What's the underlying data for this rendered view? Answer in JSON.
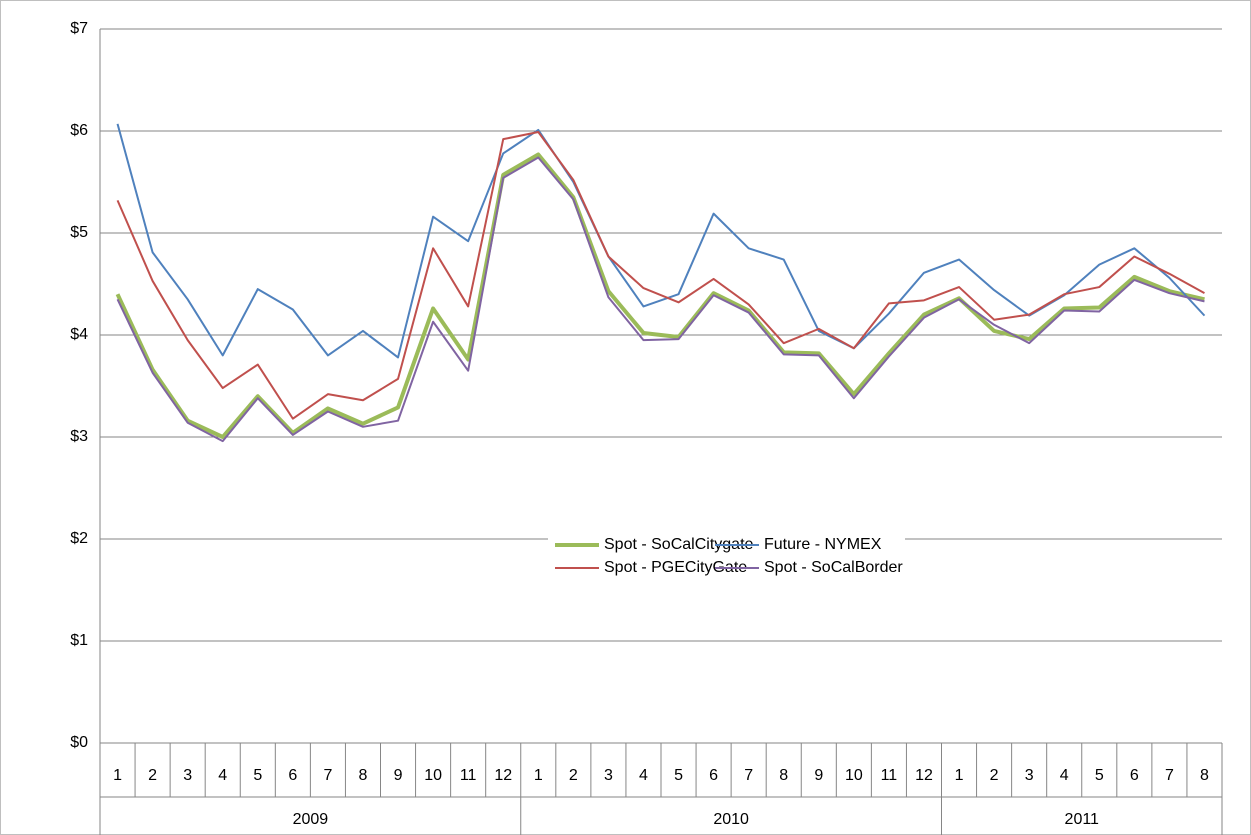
{
  "chart_data": {
    "type": "line",
    "category_groups": [
      {
        "name": "2009",
        "categories": [
          "1",
          "2",
          "3",
          "4",
          "5",
          "6",
          "7",
          "8",
          "9",
          "10",
          "11",
          "12"
        ]
      },
      {
        "name": "2010",
        "categories": [
          "1",
          "2",
          "3",
          "4",
          "5",
          "6",
          "7",
          "8",
          "9",
          "10",
          "11",
          "12"
        ]
      },
      {
        "name": "2011",
        "categories": [
          "1",
          "2",
          "3",
          "4",
          "5",
          "6",
          "7",
          "8"
        ]
      }
    ],
    "series": [
      {
        "name": "Spot - SoCalCitygate",
        "color": "#9bbb59",
        "width": 4,
        "values": [
          4.4,
          3.66,
          3.16,
          3.0,
          3.4,
          3.04,
          3.28,
          3.13,
          3.29,
          4.26,
          3.76,
          5.57,
          5.77,
          5.35,
          4.43,
          4.02,
          3.98,
          4.41,
          4.24,
          3.83,
          3.82,
          3.42,
          3.82,
          4.2,
          4.36,
          4.04,
          3.96,
          4.26,
          4.27,
          4.57,
          4.43,
          4.35
        ]
      },
      {
        "name": "Future - NYMEX",
        "color": "#4f81bd",
        "width": 2,
        "values": [
          6.07,
          4.81,
          4.35,
          3.8,
          4.45,
          4.25,
          3.8,
          4.04,
          3.78,
          5.16,
          4.92,
          5.78,
          6.01,
          5.5,
          4.77,
          4.28,
          4.4,
          5.19,
          4.85,
          4.74,
          4.04,
          3.87,
          4.21,
          4.61,
          4.74,
          4.44,
          4.19,
          4.39,
          4.69,
          4.85,
          4.56,
          4.19
        ]
      },
      {
        "name": "Spot - PGECityGate",
        "color": "#c0504d",
        "width": 2,
        "values": [
          5.32,
          4.53,
          3.95,
          3.48,
          3.71,
          3.18,
          3.42,
          3.36,
          3.57,
          4.85,
          4.28,
          5.92,
          5.99,
          5.52,
          4.77,
          4.46,
          4.32,
          4.55,
          4.3,
          3.92,
          4.06,
          3.87,
          4.31,
          4.34,
          4.47,
          4.15,
          4.2,
          4.4,
          4.47,
          4.77,
          4.6,
          4.41
        ]
      },
      {
        "name": "Spot - SoCalBorder",
        "color": "#8064a2",
        "width": 2,
        "values": [
          4.35,
          3.63,
          3.14,
          2.96,
          3.38,
          3.02,
          3.25,
          3.1,
          3.16,
          4.13,
          3.65,
          5.54,
          5.74,
          5.33,
          4.37,
          3.95,
          3.96,
          4.39,
          4.22,
          3.81,
          3.8,
          3.38,
          3.79,
          4.17,
          4.35,
          4.1,
          3.92,
          4.24,
          4.23,
          4.54,
          4.41,
          4.33
        ]
      }
    ],
    "ylim": [
      0,
      7
    ],
    "yticks": [
      {
        "value": 0,
        "label": "$0"
      },
      {
        "value": 1,
        "label": "$1"
      },
      {
        "value": 2,
        "label": "$2"
      },
      {
        "value": 3,
        "label": "$3"
      },
      {
        "value": 4,
        "label": "$4"
      },
      {
        "value": 5,
        "label": "$5"
      },
      {
        "value": 6,
        "label": "$6"
      },
      {
        "value": 7,
        "label": "$7"
      }
    ],
    "grid": true,
    "legend": "center-right"
  }
}
